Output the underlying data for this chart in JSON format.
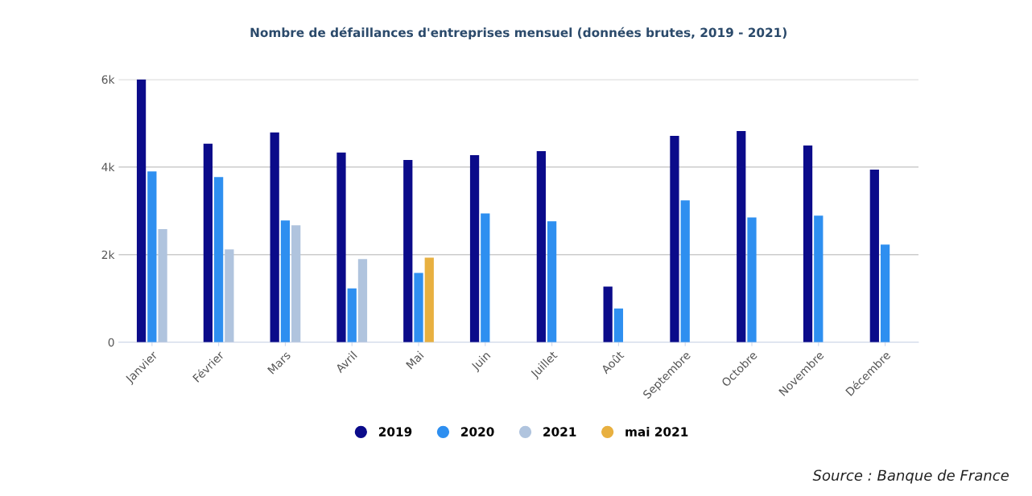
{
  "chart_data": {
    "type": "bar",
    "title": "Nombre de défaillances d'entreprises mensuel (données brutes, 2019 - 2021)",
    "categories": [
      "Janvier",
      "Février",
      "Mars",
      "Avril",
      "Mai",
      "Juin",
      "Juillet",
      "Août",
      "Septembre",
      "Octobre",
      "Novembre",
      "Décembre"
    ],
    "series": [
      {
        "name": "2019",
        "color": "#0b0b8a",
        "values": [
          6000,
          4530,
          4790,
          4330,
          4160,
          4270,
          4360,
          1270,
          4710,
          4820,
          4490,
          3940
        ]
      },
      {
        "name": "2020",
        "color": "#2e8ff0",
        "values": [
          3900,
          3770,
          2780,
          1230,
          1580,
          2940,
          2760,
          770,
          3240,
          2850,
          2890,
          2230
        ]
      },
      {
        "name": "2021",
        "color": "#b0c4de",
        "values": [
          2580,
          2120,
          2670,
          1900,
          null,
          null,
          null,
          null,
          null,
          null,
          null,
          null
        ]
      },
      {
        "name": "mai 2021",
        "color": "#e8b040",
        "values": [
          null,
          null,
          null,
          null,
          1930,
          null,
          null,
          null,
          null,
          null,
          null,
          null
        ]
      }
    ],
    "ylim": [
      0,
      6000
    ],
    "yticks": [
      {
        "value": 0,
        "label": "0"
      },
      {
        "value": 2000,
        "label": "2k"
      },
      {
        "value": 4000,
        "label": "4k"
      },
      {
        "value": 6000,
        "label": "6k"
      }
    ],
    "grid": "y",
    "legend": "bottom",
    "annotations": [
      "Source : Banque de France"
    ]
  }
}
